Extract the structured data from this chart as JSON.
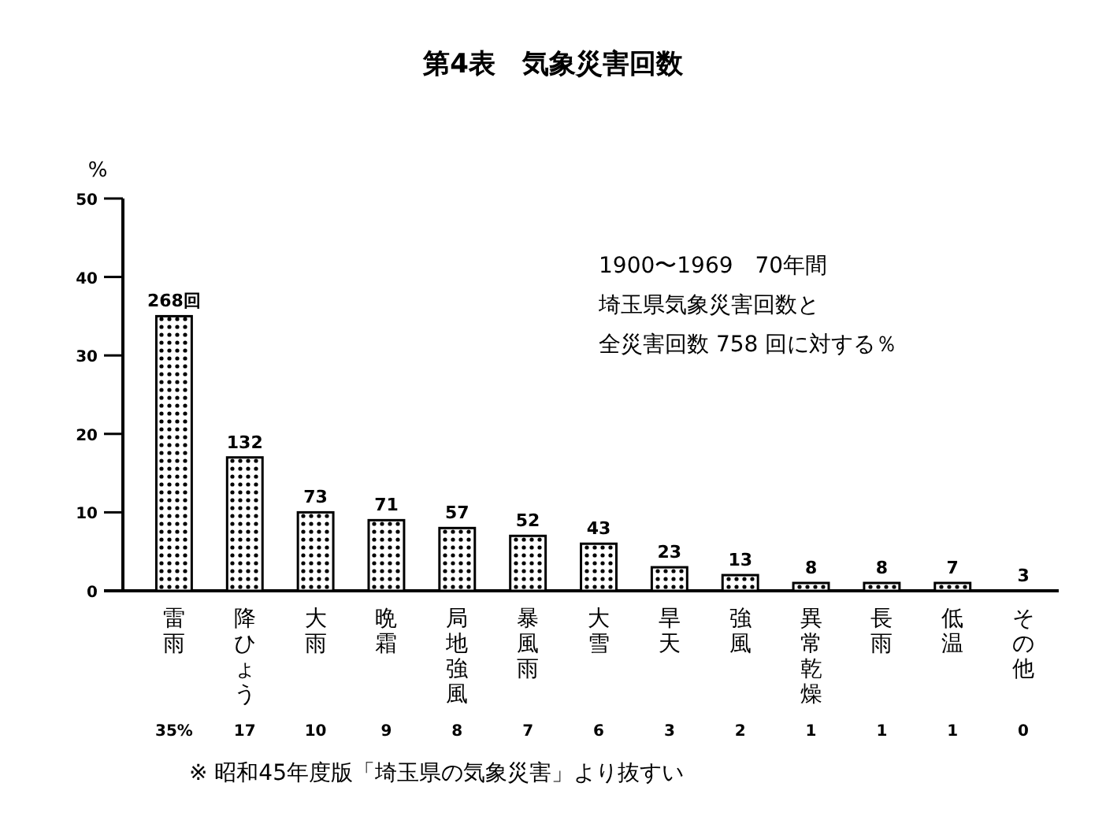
{
  "chart_data": {
    "type": "bar",
    "title": "第4表　気象災害回数",
    "ylabel": "%",
    "categories": [
      "雷雨",
      "降ひょう",
      "大雨",
      "晩霜",
      "局地強風",
      "暴風雨",
      "大雪",
      "旱天",
      "強風",
      "異常乾燥",
      "長雨",
      "低温",
      "その他"
    ],
    "values": [
      35,
      17,
      10,
      9,
      8,
      7,
      6,
      3,
      2,
      1,
      1,
      1,
      0
    ],
    "value_labels": [
      "35%",
      "17",
      "10",
      "9",
      "8",
      "7",
      "6",
      "3",
      "2",
      "1",
      "1",
      "1",
      "0"
    ],
    "color": "#000000",
    "ylim": [
      0,
      50
    ],
    "yticks": [
      0,
      10,
      20,
      30,
      40,
      50
    ],
    "grid": false,
    "annotations": [
      {
        "text": "268回",
        "x": "雷雨",
        "y": 35
      },
      {
        "text": "132",
        "x": "降ひょう",
        "y": 17
      },
      {
        "text": "73",
        "x": "大雨",
        "y": 10
      },
      {
        "text": "71",
        "x": "晩霜",
        "y": 9
      },
      {
        "text": "57",
        "x": "局地強風",
        "y": 8
      },
      {
        "text": "52",
        "x": "暴風雨",
        "y": 7
      },
      {
        "text": "43",
        "x": "大雪",
        "y": 6
      },
      {
        "text": "23",
        "x": "旱天",
        "y": 3
      },
      {
        "text": "13",
        "x": "強風",
        "y": 2
      },
      {
        "text": "8",
        "x": "異常乾燥",
        "y": 1
      },
      {
        "text": "8",
        "x": "長雨",
        "y": 1
      },
      {
        "text": "7",
        "x": "低温",
        "y": 1
      },
      {
        "text": "3",
        "x": "その他",
        "y": 0
      },
      "1900〜1969　70年間",
      "埼玉県気象災害回数と",
      "全災害回数 758 回に対する％",
      "※ 昭和45年度版「埼玉県の気象災害」より抜すい"
    ]
  }
}
